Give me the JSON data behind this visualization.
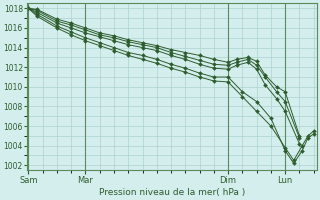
{
  "xlabel": "Pression niveau de la mer( hPa )",
  "bg_color": "#d4eeed",
  "grid_color": "#aed4d0",
  "line_color": "#2d5c2d",
  "marker_color": "#2d5c2d",
  "ylim": [
    1001.5,
    1018.5
  ],
  "yticks": [
    1002,
    1004,
    1006,
    1008,
    1010,
    1012,
    1014,
    1016,
    1018
  ],
  "xtick_labels": [
    "Sam",
    "Mar",
    "Dim",
    "Lun"
  ],
  "xtick_positions": [
    0.0,
    2.0,
    7.0,
    9.0
  ],
  "xlim": [
    -0.05,
    10.1
  ],
  "series": [
    [
      [
        0.0,
        1018.0
      ],
      [
        0.3,
        1017.9
      ],
      [
        1.0,
        1016.9
      ],
      [
        1.5,
        1016.5
      ],
      [
        2.0,
        1016.0
      ],
      [
        2.5,
        1015.5
      ],
      [
        3.0,
        1015.2
      ],
      [
        3.5,
        1014.8
      ],
      [
        4.0,
        1014.5
      ],
      [
        4.5,
        1014.2
      ],
      [
        5.0,
        1013.8
      ],
      [
        5.5,
        1013.5
      ],
      [
        6.0,
        1013.2
      ],
      [
        6.5,
        1012.8
      ],
      [
        7.0,
        1012.5
      ],
      [
        7.3,
        1012.8
      ],
      [
        7.7,
        1013.0
      ],
      [
        8.0,
        1012.6
      ],
      [
        8.3,
        1011.2
      ],
      [
        8.7,
        1010.0
      ],
      [
        9.0,
        1009.5
      ],
      [
        9.5,
        1005.0
      ]
    ],
    [
      [
        0.0,
        1018.0
      ],
      [
        0.3,
        1017.8
      ],
      [
        1.0,
        1016.7
      ],
      [
        1.5,
        1016.3
      ],
      [
        2.0,
        1015.8
      ],
      [
        2.5,
        1015.3
      ],
      [
        3.0,
        1015.0
      ],
      [
        3.5,
        1014.6
      ],
      [
        4.0,
        1014.3
      ],
      [
        4.5,
        1014.0
      ],
      [
        5.0,
        1013.5
      ],
      [
        5.5,
        1013.1
      ],
      [
        6.0,
        1012.7
      ],
      [
        6.5,
        1012.3
      ],
      [
        7.0,
        1012.2
      ],
      [
        7.3,
        1012.5
      ],
      [
        7.7,
        1012.8
      ],
      [
        8.0,
        1012.2
      ],
      [
        8.3,
        1011.0
      ],
      [
        8.7,
        1009.5
      ],
      [
        9.0,
        1008.5
      ],
      [
        9.5,
        1004.8
      ]
    ],
    [
      [
        0.0,
        1018.0
      ],
      [
        0.3,
        1017.6
      ],
      [
        1.0,
        1016.5
      ],
      [
        1.5,
        1016.0
      ],
      [
        2.0,
        1015.5
      ],
      [
        2.5,
        1015.1
      ],
      [
        3.0,
        1014.7
      ],
      [
        3.5,
        1014.3
      ],
      [
        4.0,
        1014.0
      ],
      [
        4.5,
        1013.7
      ],
      [
        5.0,
        1013.2
      ],
      [
        5.5,
        1012.8
      ],
      [
        6.0,
        1012.3
      ],
      [
        6.5,
        1011.9
      ],
      [
        7.0,
        1011.8
      ],
      [
        7.3,
        1012.2
      ],
      [
        7.7,
        1012.5
      ],
      [
        8.0,
        1011.8
      ],
      [
        8.3,
        1010.2
      ],
      [
        8.7,
        1008.8
      ],
      [
        9.0,
        1007.5
      ],
      [
        9.5,
        1004.2
      ]
    ],
    [
      [
        0.0,
        1018.0
      ],
      [
        0.3,
        1017.4
      ],
      [
        1.0,
        1016.2
      ],
      [
        1.5,
        1015.6
      ],
      [
        2.0,
        1015.0
      ],
      [
        2.5,
        1014.5
      ],
      [
        3.0,
        1014.0
      ],
      [
        3.5,
        1013.5
      ],
      [
        4.0,
        1013.2
      ],
      [
        4.5,
        1012.8
      ],
      [
        5.0,
        1012.3
      ],
      [
        5.5,
        1011.9
      ],
      [
        6.0,
        1011.4
      ],
      [
        6.5,
        1011.0
      ],
      [
        7.0,
        1011.0
      ],
      [
        7.5,
        1009.5
      ],
      [
        8.0,
        1008.5
      ],
      [
        8.5,
        1006.8
      ],
      [
        9.0,
        1003.5
      ],
      [
        9.3,
        1002.2
      ],
      [
        9.6,
        1003.5
      ],
      [
        9.8,
        1004.8
      ],
      [
        10.0,
        1005.2
      ]
    ],
    [
      [
        0.0,
        1018.0
      ],
      [
        0.3,
        1017.2
      ],
      [
        1.0,
        1016.0
      ],
      [
        1.5,
        1015.3
      ],
      [
        2.0,
        1014.7
      ],
      [
        2.5,
        1014.2
      ],
      [
        3.0,
        1013.7
      ],
      [
        3.5,
        1013.2
      ],
      [
        4.0,
        1012.8
      ],
      [
        4.5,
        1012.4
      ],
      [
        5.0,
        1011.9
      ],
      [
        5.5,
        1011.5
      ],
      [
        6.0,
        1011.0
      ],
      [
        6.5,
        1010.6
      ],
      [
        7.0,
        1010.5
      ],
      [
        7.5,
        1009.0
      ],
      [
        8.0,
        1007.5
      ],
      [
        8.5,
        1006.0
      ],
      [
        9.0,
        1003.8
      ],
      [
        9.3,
        1002.5
      ],
      [
        9.6,
        1004.0
      ],
      [
        9.8,
        1005.0
      ],
      [
        10.0,
        1005.5
      ]
    ]
  ]
}
